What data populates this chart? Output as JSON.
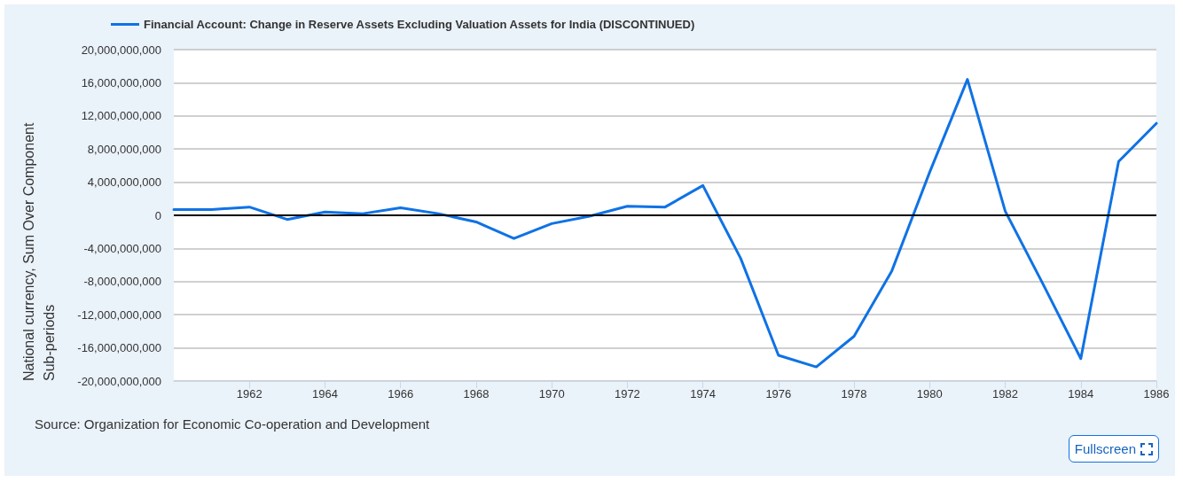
{
  "chart_data": {
    "type": "line",
    "x": [
      1960,
      1961,
      1962,
      1963,
      1964,
      1965,
      1966,
      1967,
      1968,
      1969,
      1970,
      1971,
      1972,
      1973,
      1974,
      1975,
      1976,
      1977,
      1978,
      1979,
      1980,
      1981,
      1982,
      1983,
      1984,
      1985,
      1986
    ],
    "series": [
      {
        "name": "Financial Account: Change in Reserve Assets Excluding Valuation Assets for India (DISCONTINUED)",
        "color": "#0f72e5",
        "values": [
          700000000,
          700000000,
          1000000000,
          -500000000,
          400000000,
          200000000,
          900000000,
          200000000,
          -800000000,
          -2800000000,
          -1000000000,
          -100000000,
          1100000000,
          1000000000,
          3600000000,
          -5200000000,
          -16900000000,
          -18300000000,
          -14600000000,
          -6700000000,
          5200000000,
          16400000000,
          500000000,
          -8300000000,
          -17300000000,
          6500000000,
          11100000000
        ]
      }
    ],
    "ylabel": "National currency, Sum Over Component Sub-periods",
    "xlim": [
      1960,
      1986
    ],
    "xticks": [
      1962,
      1964,
      1966,
      1968,
      1970,
      1972,
      1974,
      1976,
      1978,
      1980,
      1982,
      1984,
      1986
    ],
    "ylim": [
      -20000000000,
      20000000000
    ],
    "yticks": [
      {
        "value": -20000000000,
        "label": "-20,000,000,000"
      },
      {
        "value": -16000000000,
        "label": "-16,000,000,000"
      },
      {
        "value": -12000000000,
        "label": "-12,000,000,000"
      },
      {
        "value": -8000000000,
        "label": "-8,000,000,000"
      },
      {
        "value": -4000000000,
        "label": "-4,000,000,000"
      },
      0,
      {
        "value": 4000000000,
        "label": "4,000,000,000"
      },
      {
        "value": 8000000000,
        "label": "8,000,000,000"
      },
      {
        "value": 12000000000,
        "label": "12,000,000,000"
      },
      {
        "value": 16000000000,
        "label": "16,000,000,000"
      },
      {
        "value": 20000000000,
        "label": "20,000,000,000"
      }
    ],
    "ref_lines": [
      {
        "axis": "y",
        "value": 0,
        "color": "#000000"
      }
    ],
    "annotations": [
      "Source: Organization for Economic Co-operation and Development",
      "Fullscreen"
    ],
    "grid": "y",
    "legend": "top left",
    "marker": "none"
  }
}
